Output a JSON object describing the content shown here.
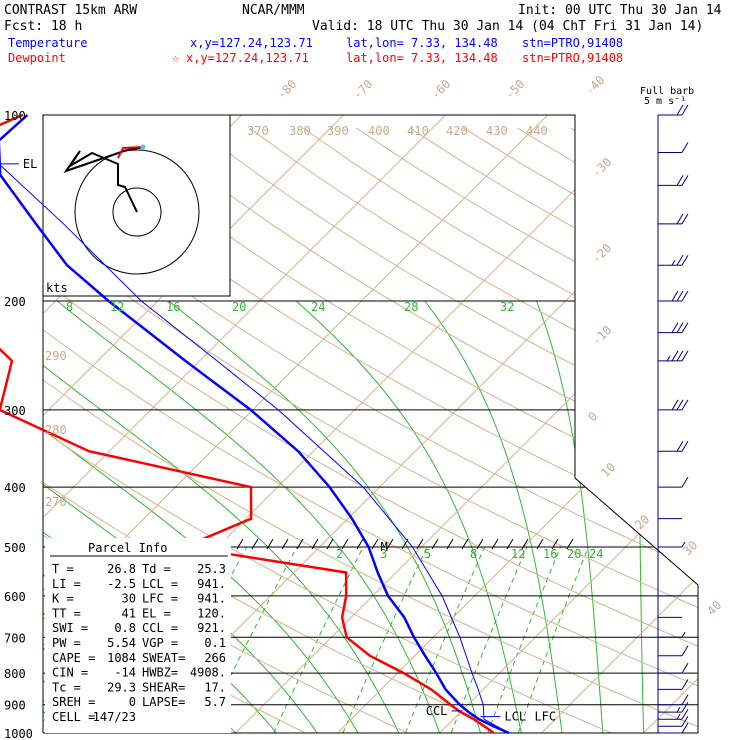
{
  "header": {
    "title_left": "CONTRAST 15km ARW",
    "title_center": "NCAR/MMM",
    "init": "Init: 00 UTC Thu 30 Jan 14",
    "fcst": "Fcst:   18 h",
    "valid": "Valid: 18 UTC Thu 30 Jan 14 (04 ChT Fri 31 Jan 14)"
  },
  "legend": {
    "temperature": {
      "label": "Temperature",
      "xy": "x,y=127.24,123.71",
      "latlon": "lat,lon=  7.33, 134.48",
      "stn": "stn=PTRO,91408",
      "color": "#0000ff"
    },
    "dewpoint": {
      "label": "Dewpoint",
      "marker": "☆",
      "xy": "x,y=127.24,123.71",
      "latlon": "lat,lon=  7.33, 134.48",
      "stn": "stn=PTRO,91408",
      "color": "#ff0000"
    }
  },
  "barb_header": {
    "line1": "Full barb",
    "line2": "5 m s⁻¹"
  },
  "hodograph": {
    "units": "kts"
  },
  "parcel_info": {
    "title": "Parcel Info",
    "rows": [
      [
        "T  =",
        "26.8",
        "Td =",
        "25.3"
      ],
      [
        "LI =",
        "-2.5",
        "LCL =",
        "941."
      ],
      [
        "K  =",
        "30",
        "LFC =",
        "941."
      ],
      [
        "TT =",
        "41",
        "EL  =",
        "120."
      ],
      [
        "SWI =",
        "0.8",
        "CCL =",
        "921."
      ],
      [
        "PW =",
        "5.54",
        "VGP =",
        "0.1"
      ],
      [
        "CAPE =",
        "1084",
        "SWEAT=",
        "266"
      ],
      [
        "CIN =",
        "-14",
        "HWBZ=",
        "4908."
      ],
      [
        "Tc =",
        "29.3",
        "SHEAR=",
        "17."
      ],
      [
        "SREH =",
        "0",
        "LAPSE=",
        "5.7"
      ],
      [
        "CELL =",
        "147/23",
        "",
        ""
      ]
    ]
  },
  "level_markers": {
    "el": "EL",
    "ccl": "CCL",
    "lcl": "LCL",
    "lfc": "LFC",
    "m": "M"
  },
  "chart_data": {
    "type": "line",
    "title": "",
    "xlabel": "",
    "ylabel": "",
    "y_scale": "log-pressure",
    "pressure_ticks": [
      "100",
      "200",
      "300",
      "400",
      "500",
      "600",
      "700",
      "800",
      "900",
      "1000"
    ],
    "isotherm_labels": [
      "-80",
      "-70",
      "-60",
      "-50",
      "-40",
      "-30",
      "-20",
      "-10",
      "0",
      "10",
      "20",
      "30",
      "40"
    ],
    "theta_labels": [
      "370",
      "380",
      "390",
      "400",
      "410",
      "420",
      "430",
      "440",
      "290",
      "280",
      "270"
    ],
    "mixing_ratio_labels_upper": [
      "8",
      "12",
      "16",
      "20",
      "24",
      "28",
      "32"
    ],
    "mixing_ratio_labels_lower": [
      "2",
      "3",
      "5",
      "8",
      "12",
      "16",
      "20",
      "24"
    ],
    "series": [
      {
        "name": "Temperature",
        "color": "#0000ff",
        "p": [
          1000,
          975,
          950,
          925,
          900,
          850,
          800,
          750,
          700,
          650,
          600,
          550,
          500,
          450,
          400,
          350,
          300,
          250,
          200,
          175,
          150,
          125,
          110,
          100
        ],
        "t": [
          26.8,
          24.6,
          22.5,
          20.8,
          19.2,
          16.3,
          13.8,
          11.0,
          8.1,
          5.2,
          1.5,
          -1.8,
          -5.2,
          -9.6,
          -14.9,
          -21.5,
          -30.2,
          -41.4,
          -54.8,
          -62.4,
          -69.5,
          -77.8,
          -81.3,
          -81.0
        ]
      },
      {
        "name": "Dewpoint",
        "color": "#ff0000",
        "p": [
          1000,
          975,
          950,
          925,
          900,
          850,
          800,
          750,
          700,
          650,
          600,
          550,
          500,
          450,
          400,
          350,
          300,
          250,
          200,
          175,
          150,
          125,
          110,
          100
        ],
        "t": [
          25.3,
          23.7,
          22.0,
          20.0,
          18.3,
          14.9,
          10.6,
          5.6,
          1.5,
          -0.9,
          -2.6,
          -4.9,
          -23.3,
          -19.5,
          -22.6,
          -42.0,
          -54.8,
          -58.4,
          -70.4,
          -76.0,
          -90.6,
          -86.6,
          -84.7,
          -81.5
        ]
      }
    ],
    "wind_profile": {
      "p": [
        1000,
        975,
        950,
        925,
        900,
        850,
        800,
        750,
        700,
        650,
        600,
        500,
        450,
        400,
        350,
        300,
        250,
        225,
        200,
        175,
        150,
        130,
        115,
        100
      ],
      "speed_ms": [
        6,
        7,
        8,
        8,
        7,
        6,
        5,
        5,
        3,
        2,
        2,
        3,
        2,
        5,
        10,
        15,
        18,
        17,
        15,
        14,
        12,
        10,
        6,
        10
      ]
    },
    "parcel_trace": {
      "p": [
        1000,
        950,
        900,
        850,
        800,
        700,
        600,
        500,
        400,
        300,
        250,
        200,
        150,
        120
      ],
      "t": [
        26.8,
        23.0,
        21.5,
        19.5,
        17.3,
        12.6,
        6.8,
        -0.9,
        -11.6,
        -27.5,
        -38.3,
        -51.6,
        -66.8,
        -79.0
      ]
    }
  }
}
